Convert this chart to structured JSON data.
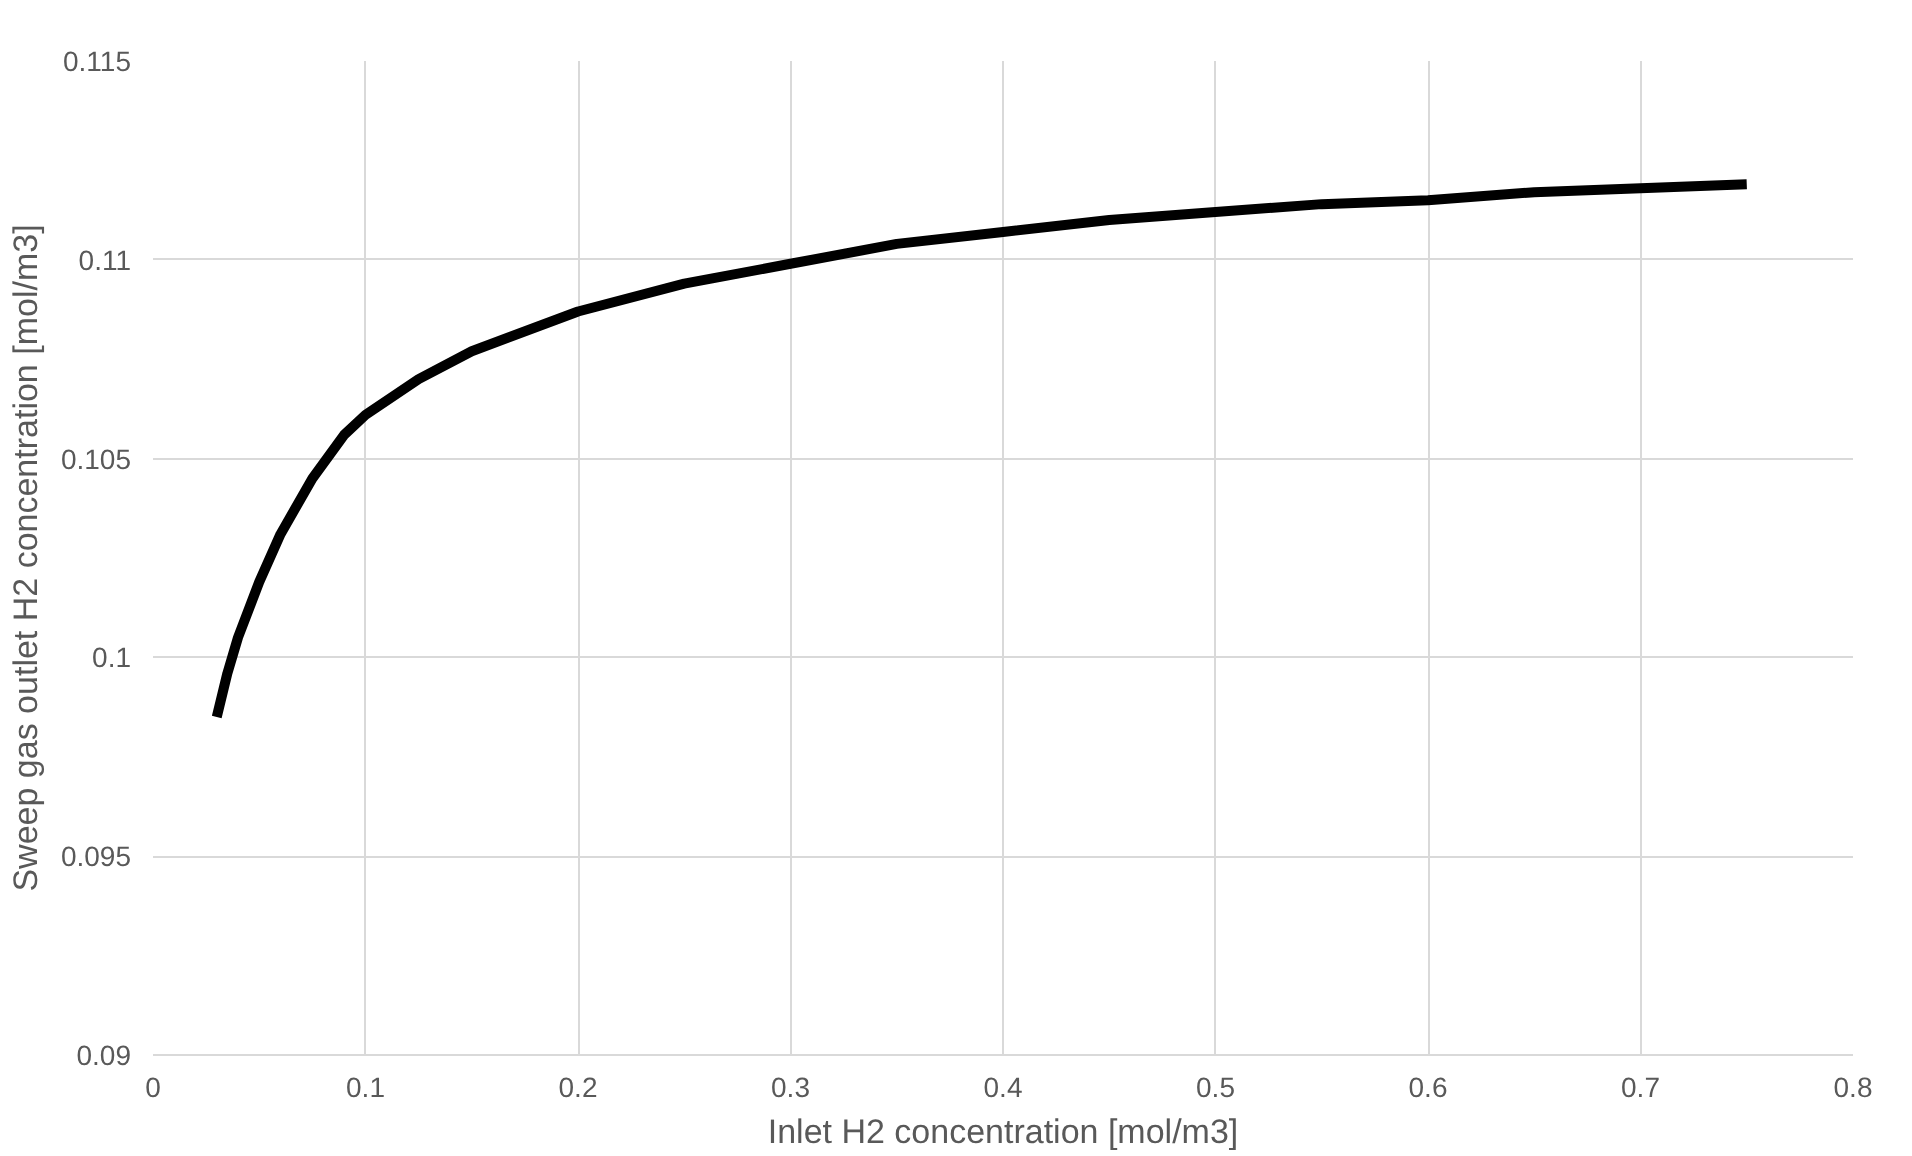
{
  "chart_data": {
    "type": "line",
    "xlabel": "Inlet H2 concentration [mol/m3]",
    "ylabel": "Sweep gas outlet H2 concentration [mol/m3]",
    "xlim": [
      0,
      0.8
    ],
    "ylim": [
      0.09,
      0.115
    ],
    "xticks": [
      {
        "value": 0,
        "label": "0"
      },
      0.1,
      0.2,
      0.3,
      0.4,
      0.5,
      0.6,
      0.7,
      0.8
    ],
    "yticks": [
      0.09,
      0.095,
      0.1,
      0.105,
      0.11,
      0.115
    ],
    "grid": true,
    "marker": "none",
    "line_style": "solid",
    "series": [
      {
        "color": "#000000",
        "x": [
          0.03,
          0.035,
          0.04,
          0.05,
          0.06,
          0.075,
          0.09,
          0.1,
          0.125,
          0.15,
          0.2,
          0.25,
          0.3,
          0.35,
          0.4,
          0.45,
          0.5,
          0.55,
          0.6,
          0.65,
          0.7,
          0.75
        ],
        "values": [
          0.0985,
          0.0996,
          0.1005,
          0.1019,
          0.1031,
          0.1045,
          0.1056,
          0.1061,
          0.107,
          0.1077,
          0.1087,
          0.1094,
          0.1099,
          0.1104,
          0.1107,
          0.111,
          0.1112,
          0.1114,
          0.1115,
          0.1117,
          0.1118,
          0.1119
        ]
      }
    ]
  }
}
